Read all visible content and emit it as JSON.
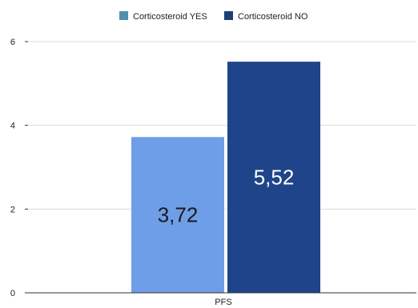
{
  "chart_data": {
    "type": "bar",
    "categories": [
      "PFS"
    ],
    "series": [
      {
        "name": "Corticosteroid YES",
        "values": [
          3.72
        ],
        "value_labels": [
          "3,72"
        ],
        "color": "#6f9ee8",
        "legend_color": "#4f8fb0",
        "label_color": "#1a1a1a"
      },
      {
        "name": "Corticosteroid NO",
        "values": [
          5.52
        ],
        "value_labels": [
          "5,52"
        ],
        "color": "#1f4489",
        "legend_color": "#1d3f78",
        "label_color": "#ffffff"
      }
    ],
    "title": "",
    "xlabel": "",
    "ylabel": "",
    "ylim": [
      0,
      6
    ],
    "yticks": [
      "0",
      "2",
      "4",
      "6"
    ],
    "grid": true,
    "legend_position": "top-center"
  }
}
